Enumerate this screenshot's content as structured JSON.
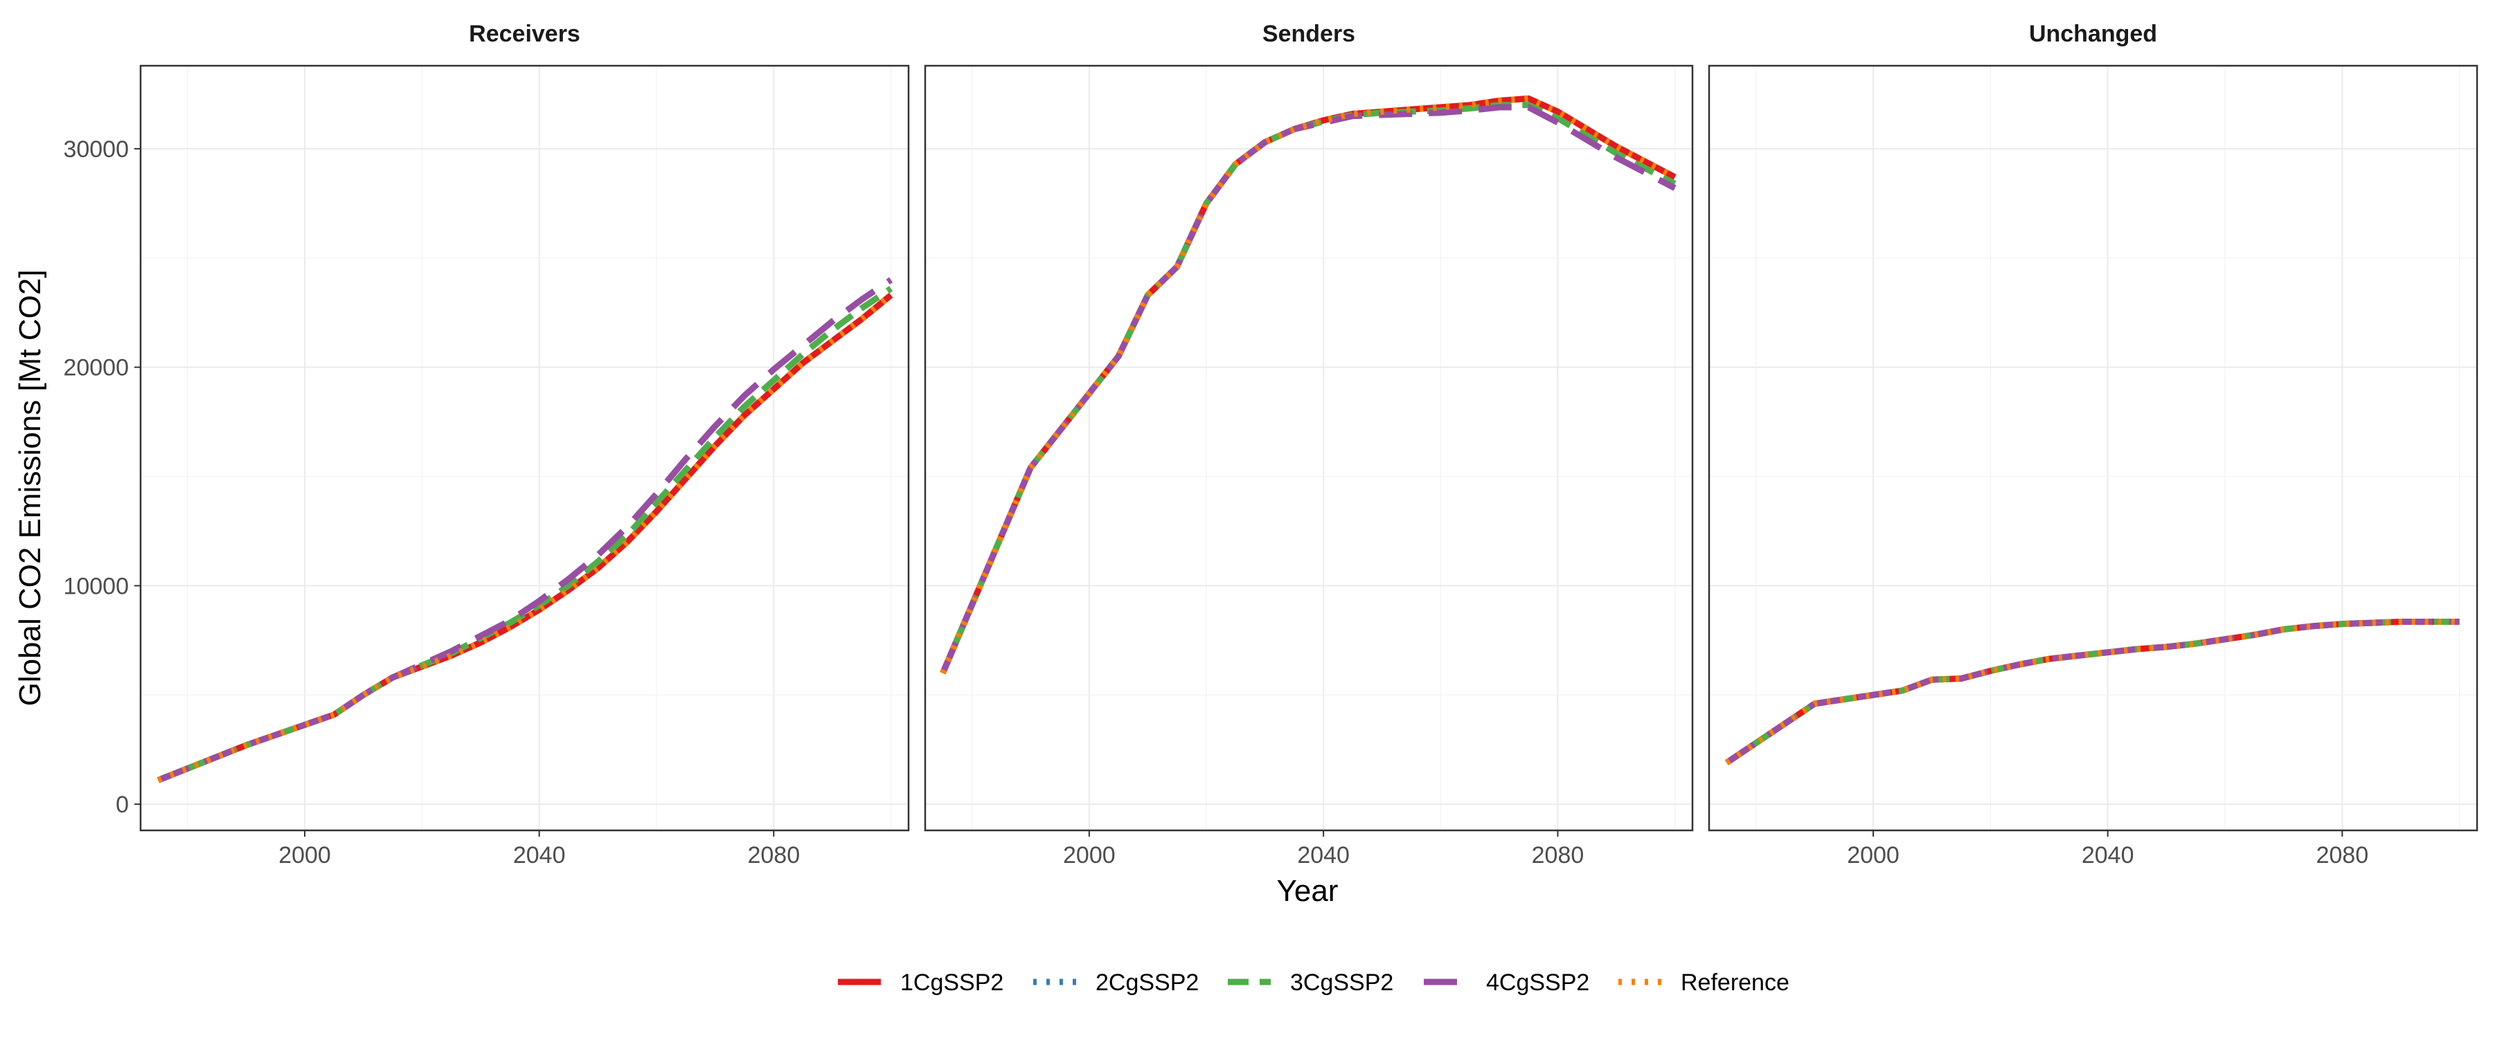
{
  "chart_data": {
    "type": "line",
    "xlabel": "Year",
    "ylabel": "Global CO2 Emissions [Mt CO2]",
    "xlim": [
      1972,
      2103
    ],
    "ylim": [
      -1200,
      33800
    ],
    "x_ticks": [
      2000,
      2040,
      2080
    ],
    "y_ticks": [
      0,
      10000,
      20000,
      30000
    ],
    "grid": true,
    "legend_position": "bottom",
    "series": [
      {
        "name": "1CgSSP2",
        "color": "#E41A1C",
        "dash": "solid"
      },
      {
        "name": "2CgSSP2",
        "color": "#377EB8",
        "dash": "dotted"
      },
      {
        "name": "3CgSSP2",
        "color": "#4DAF4A",
        "dash": "dashed"
      },
      {
        "name": "4CgSSP2",
        "color": "#984EA3",
        "dash": "longdash"
      },
      {
        "name": "Reference",
        "color": "#FF7F00",
        "dash": "dotted"
      }
    ],
    "panels": [
      {
        "title": "Receivers",
        "x": [
          1975,
          1990,
          2005,
          2010,
          2015,
          2020,
          2025,
          2030,
          2035,
          2040,
          2045,
          2050,
          2055,
          2060,
          2065,
          2070,
          2075,
          2080,
          2085,
          2090,
          2095,
          2100
        ],
        "values": {
          "1CgSSP2": [
            1100,
            2700,
            4100,
            5000,
            5800,
            6300,
            6800,
            7400,
            8100,
            8900,
            9800,
            10800,
            12000,
            13400,
            14900,
            16400,
            17800,
            19000,
            20200,
            21200,
            22200,
            23300
          ],
          "2CgSSP2": [
            1100,
            2700,
            4100,
            5000,
            5800,
            6300,
            6800,
            7400,
            8100,
            8900,
            9800,
            10800,
            12000,
            13400,
            14900,
            16400,
            17800,
            19000,
            20200,
            21200,
            22200,
            23300
          ],
          "3CgSSP2": [
            1100,
            2700,
            4100,
            5000,
            5800,
            6350,
            6900,
            7600,
            8300,
            9100,
            10000,
            11100,
            12300,
            13800,
            15300,
            16800,
            18200,
            19400,
            20600,
            21700,
            22700,
            23600
          ],
          "4CgSSP2": [
            1100,
            2700,
            4100,
            5000,
            5800,
            6400,
            7000,
            7700,
            8400,
            9300,
            10300,
            11400,
            12700,
            14200,
            15800,
            17300,
            18700,
            19900,
            21000,
            22100,
            23100,
            24000
          ],
          "Reference": [
            1100,
            2700,
            4100,
            5000,
            5800,
            6300,
            6800,
            7400,
            8100,
            8900,
            9800,
            10800,
            12000,
            13400,
            14900,
            16400,
            17800,
            19000,
            20200,
            21200,
            22200,
            23300
          ]
        }
      },
      {
        "title": "Senders",
        "x": [
          1975,
          1990,
          2005,
          2010,
          2015,
          2020,
          2025,
          2030,
          2035,
          2040,
          2045,
          2050,
          2055,
          2060,
          2065,
          2070,
          2075,
          2080,
          2085,
          2090,
          2095,
          2100
        ],
        "values": {
          "1CgSSP2": [
            6000,
            15400,
            20500,
            23300,
            24600,
            27500,
            29300,
            30300,
            30900,
            31300,
            31600,
            31700,
            31800,
            31900,
            32000,
            32200,
            32300,
            31700,
            30900,
            30100,
            29400,
            28700
          ],
          "2CgSSP2": [
            6000,
            15400,
            20500,
            23300,
            24600,
            27500,
            29300,
            30300,
            30900,
            31300,
            31600,
            31700,
            31800,
            31900,
            32000,
            32200,
            32300,
            31700,
            30900,
            30100,
            29400,
            28700
          ],
          "3CgSSP2": [
            6000,
            15400,
            20500,
            23300,
            24600,
            27500,
            29300,
            30300,
            30900,
            31250,
            31550,
            31650,
            31700,
            31750,
            31850,
            32000,
            32000,
            31400,
            30600,
            29800,
            29100,
            28400
          ],
          "4CgSSP2": [
            6000,
            15400,
            20500,
            23300,
            24600,
            27500,
            29300,
            30300,
            30900,
            31200,
            31500,
            31550,
            31600,
            31650,
            31750,
            31900,
            31900,
            31200,
            30400,
            29600,
            28900,
            28200
          ],
          "Reference": [
            6000,
            15400,
            20500,
            23300,
            24600,
            27500,
            29300,
            30300,
            30900,
            31300,
            31600,
            31700,
            31800,
            31900,
            32000,
            32200,
            32300,
            31700,
            30900,
            30100,
            29400,
            28700
          ]
        }
      },
      {
        "title": "Unchanged",
        "x": [
          1975,
          1990,
          2005,
          2010,
          2015,
          2020,
          2025,
          2030,
          2035,
          2040,
          2045,
          2050,
          2055,
          2060,
          2065,
          2070,
          2075,
          2080,
          2085,
          2090,
          2095,
          2100
        ],
        "values": {
          "1CgSSP2": [
            1900,
            4600,
            5200,
            5700,
            5750,
            6100,
            6400,
            6650,
            6800,
            6950,
            7100,
            7200,
            7350,
            7550,
            7750,
            8000,
            8150,
            8250,
            8300,
            8350,
            8350,
            8350
          ],
          "2CgSSP2": [
            1900,
            4600,
            5200,
            5700,
            5750,
            6100,
            6400,
            6650,
            6800,
            6950,
            7100,
            7200,
            7350,
            7550,
            7750,
            8000,
            8150,
            8250,
            8300,
            8350,
            8350,
            8350
          ],
          "3CgSSP2": [
            1900,
            4600,
            5200,
            5700,
            5750,
            6100,
            6400,
            6650,
            6800,
            6950,
            7100,
            7200,
            7350,
            7550,
            7750,
            8000,
            8150,
            8250,
            8300,
            8350,
            8350,
            8350
          ],
          "4CgSSP2": [
            1900,
            4600,
            5200,
            5700,
            5750,
            6100,
            6400,
            6650,
            6800,
            6950,
            7100,
            7200,
            7350,
            7550,
            7750,
            8000,
            8150,
            8250,
            8300,
            8350,
            8350,
            8350
          ],
          "Reference": [
            1900,
            4600,
            5200,
            5700,
            5750,
            6100,
            6400,
            6650,
            6800,
            6950,
            7100,
            7200,
            7350,
            7550,
            7750,
            8000,
            8150,
            8250,
            8300,
            8350,
            8350,
            8350
          ]
        }
      }
    ]
  }
}
